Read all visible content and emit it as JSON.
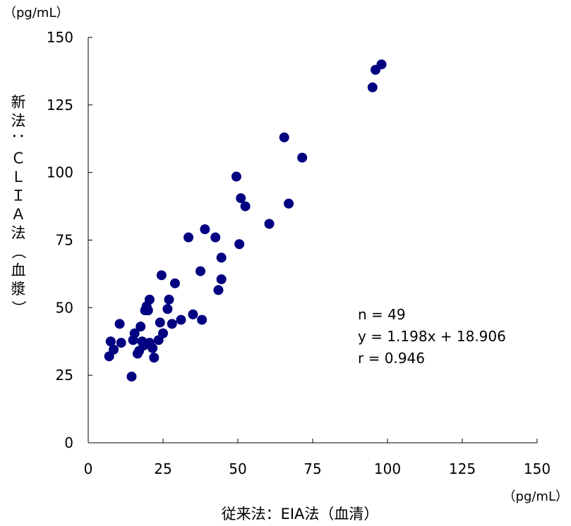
{
  "chart_data": {
    "type": "scatter",
    "y_unit": "（pg/mL）",
    "x_unit": "（pg/mL）",
    "xlabel": "従来法：EIA法（血清）",
    "ylabel": "新法：ＣＬＩＡ法（血漿）",
    "xlim": [
      0,
      150
    ],
    "ylim": [
      0,
      150
    ],
    "x_ticks": [
      0,
      25,
      50,
      75,
      100,
      125,
      150
    ],
    "y_ticks": [
      0,
      25,
      50,
      75,
      100,
      125,
      150
    ],
    "grid": false,
    "marker_color": "#000080",
    "stats": [
      "n = 49",
      "y = 1.198x + 18.906",
      "r = 0.946"
    ],
    "points": [
      {
        "x": 7,
        "y": 32
      },
      {
        "x": 7.5,
        "y": 37.5
      },
      {
        "x": 8.5,
        "y": 34.5
      },
      {
        "x": 10.5,
        "y": 44
      },
      {
        "x": 11,
        "y": 37
      },
      {
        "x": 14.5,
        "y": 24.5
      },
      {
        "x": 15,
        "y": 38
      },
      {
        "x": 15.5,
        "y": 40.5
      },
      {
        "x": 16.5,
        "y": 33
      },
      {
        "x": 17,
        "y": 34
      },
      {
        "x": 17.5,
        "y": 43
      },
      {
        "x": 18,
        "y": 37.5
      },
      {
        "x": 18.5,
        "y": 36
      },
      {
        "x": 19,
        "y": 49
      },
      {
        "x": 19.5,
        "y": 50.5
      },
      {
        "x": 20,
        "y": 49
      },
      {
        "x": 20.5,
        "y": 53
      },
      {
        "x": 20.5,
        "y": 37
      },
      {
        "x": 21.5,
        "y": 35
      },
      {
        "x": 22,
        "y": 31.5
      },
      {
        "x": 23.5,
        "y": 38
      },
      {
        "x": 24,
        "y": 44.5
      },
      {
        "x": 24.5,
        "y": 62
      },
      {
        "x": 25,
        "y": 40.5
      },
      {
        "x": 26.5,
        "y": 49.5
      },
      {
        "x": 27,
        "y": 53
      },
      {
        "x": 28,
        "y": 44
      },
      {
        "x": 29,
        "y": 59
      },
      {
        "x": 31,
        "y": 45.5
      },
      {
        "x": 33.5,
        "y": 76
      },
      {
        "x": 35,
        "y": 47.5
      },
      {
        "x": 37.5,
        "y": 63.5
      },
      {
        "x": 38,
        "y": 45.5
      },
      {
        "x": 39,
        "y": 79
      },
      {
        "x": 42.5,
        "y": 76
      },
      {
        "x": 43.5,
        "y": 56.5
      },
      {
        "x": 44.5,
        "y": 68.5
      },
      {
        "x": 44.5,
        "y": 60.5
      },
      {
        "x": 49.5,
        "y": 98.5
      },
      {
        "x": 50.5,
        "y": 73.5
      },
      {
        "x": 51,
        "y": 90.5
      },
      {
        "x": 52.5,
        "y": 87.5
      },
      {
        "x": 60.5,
        "y": 81
      },
      {
        "x": 65.5,
        "y": 113
      },
      {
        "x": 67,
        "y": 88.5
      },
      {
        "x": 71.5,
        "y": 105.5
      },
      {
        "x": 95,
        "y": 131.5
      },
      {
        "x": 96,
        "y": 138
      },
      {
        "x": 98,
        "y": 140
      }
    ]
  }
}
